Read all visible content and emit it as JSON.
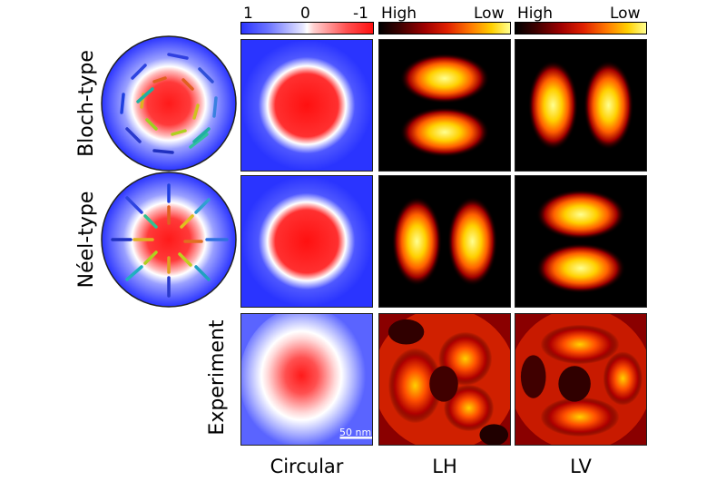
{
  "colorbar_circular": {
    "left": "1",
    "mid": "0",
    "right": "-1"
  },
  "colorbar_lh": {
    "left": "High",
    "right": "Low"
  },
  "colorbar_lv": {
    "left": "High",
    "right": "Low"
  },
  "rows": {
    "bloch": "Bloch-type",
    "neel": "Néel-type",
    "experiment": "Experiment"
  },
  "columns": {
    "circular": "Circular",
    "lh": "LH",
    "lv": "LV"
  },
  "scale_bar": "50 nm",
  "colors": {
    "blue": "#2a34ff",
    "red": "#ff1a1a",
    "white": "#ffffff",
    "black": "#000000",
    "yellow": "#ffff80"
  }
}
